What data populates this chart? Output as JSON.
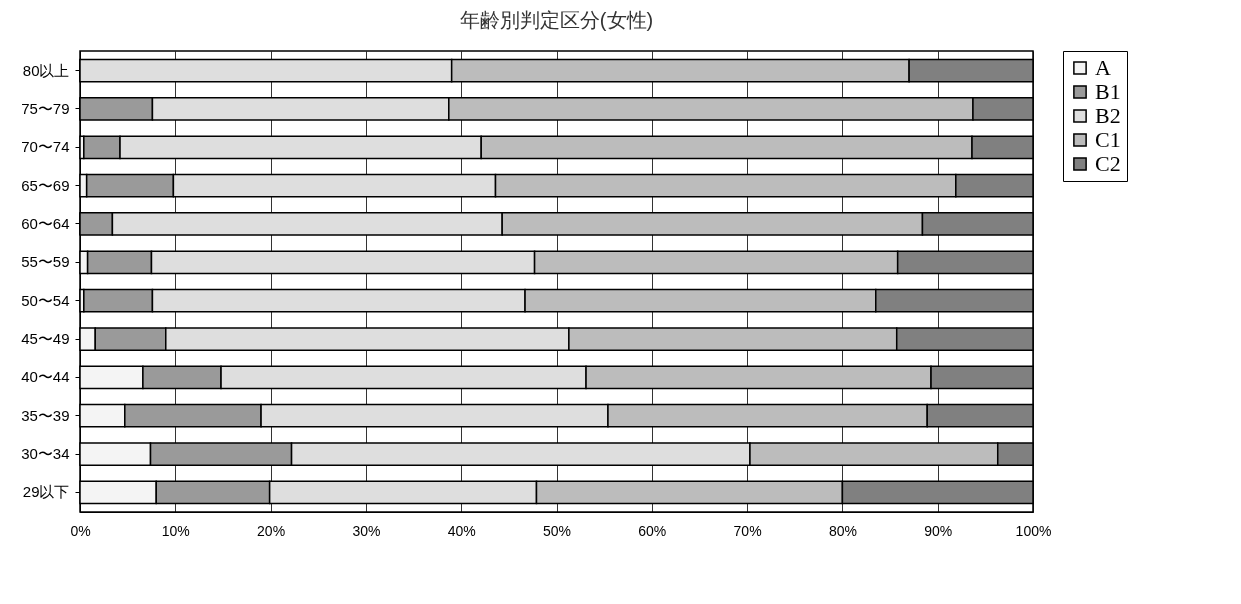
{
  "chart_data": {
    "type": "bar",
    "title": "年齢別判定区分(女性)",
    "orientation": "horizontal",
    "stacked": true,
    "categories": [
      "80以上",
      "75〜79",
      "70〜74",
      "65〜69",
      "60〜64",
      "55〜59",
      "50〜54",
      "45〜49",
      "40〜44",
      "35〜39",
      "30〜34",
      "29以下"
    ],
    "series": [
      {
        "name": "A",
        "color": "#f4f4f4",
        "values": [
          0,
          0,
          0.4,
          0.7,
          0,
          0.8,
          0.4,
          1.6,
          6.6,
          4.7,
          7.4,
          8.0
        ]
      },
      {
        "name": "B1",
        "color": "#9a9a9a",
        "values": [
          0,
          7.6,
          3.8,
          9.1,
          3.4,
          6.7,
          7.2,
          7.4,
          8.2,
          14.3,
          14.8,
          11.9
        ]
      },
      {
        "name": "B2",
        "color": "#dedede",
        "values": [
          39.0,
          31.1,
          37.9,
          33.8,
          40.9,
          40.2,
          39.1,
          42.3,
          38.3,
          36.4,
          48.1,
          28.0
        ]
      },
      {
        "name": "C1",
        "color": "#bcbcbc",
        "values": [
          48.0,
          55.0,
          51.5,
          48.3,
          44.1,
          38.1,
          36.8,
          34.4,
          36.2,
          33.5,
          26.0,
          32.1
        ]
      },
      {
        "name": "C2",
        "color": "#808080",
        "values": [
          13.0,
          6.3,
          6.4,
          8.1,
          11.6,
          14.2,
          16.5,
          14.3,
          10.7,
          11.1,
          3.7,
          20.0
        ]
      }
    ],
    "xlim": [
      0,
      100
    ],
    "xticks": [
      {
        "value": 0,
        "label": "0%"
      },
      {
        "value": 10,
        "label": "10%"
      },
      {
        "value": 20,
        "label": "20%"
      },
      {
        "value": 30,
        "label": "30%"
      },
      {
        "value": 40,
        "label": "40%"
      },
      {
        "value": 50,
        "label": "50%"
      },
      {
        "value": 60,
        "label": "60%"
      },
      {
        "value": 70,
        "label": "70%"
      },
      {
        "value": 80,
        "label": "80%"
      },
      {
        "value": 90,
        "label": "90%"
      },
      {
        "value": 100,
        "label": "100%"
      }
    ],
    "grid": "x",
    "legend": "right"
  }
}
